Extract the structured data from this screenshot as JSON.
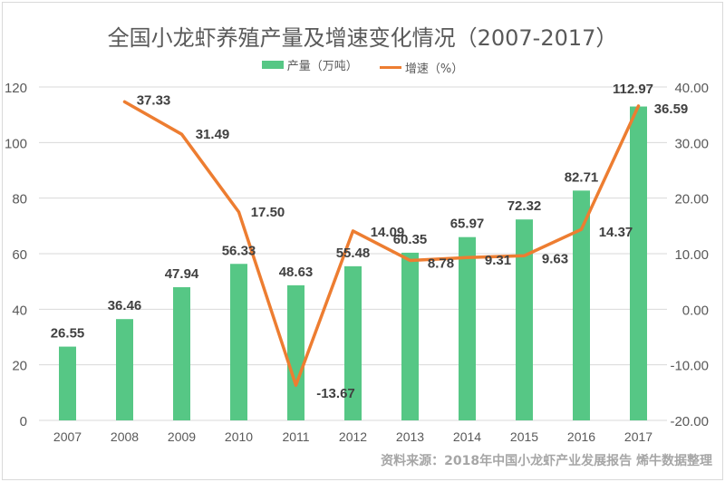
{
  "chart_data": {
    "type": "bar",
    "title": "全国小龙虾养殖产量及增速变化情况（2007-2017）",
    "categories": [
      "2007",
      "2008",
      "2009",
      "2010",
      "2011",
      "2012",
      "2013",
      "2014",
      "2015",
      "2016",
      "2017"
    ],
    "series": [
      {
        "name": "产量（万吨）",
        "type": "bar",
        "axis": "left",
        "color": "#56c785",
        "values": [
          26.55,
          36.46,
          47.94,
          56.33,
          48.63,
          55.48,
          60.35,
          65.97,
          72.32,
          82.71,
          112.97
        ],
        "labels": [
          "26.55",
          "36.46",
          "47.94",
          "56.33",
          "48.63",
          "55.48",
          "60.35",
          "65.97",
          "72.32",
          "82.71",
          "112.97"
        ]
      },
      {
        "name": "增速（%）",
        "type": "line",
        "axis": "right",
        "color": "#ed7d31",
        "values": [
          null,
          37.33,
          31.49,
          17.5,
          -13.67,
          14.09,
          8.78,
          9.31,
          9.63,
          14.37,
          36.59
        ],
        "labels": [
          "",
          "37.33",
          "31.49",
          "17.50",
          "-13.67",
          "14.09",
          "8.78",
          "9.31",
          "9.63",
          "14.37",
          "36.59"
        ]
      }
    ],
    "left_axis": {
      "ylim": [
        0,
        120
      ],
      "ticks": [
        "0",
        "20",
        "40",
        "60",
        "80",
        "100",
        "120"
      ]
    },
    "right_axis": {
      "ylim": [
        -20,
        40
      ],
      "ticks": [
        "-20.00",
        "-10.00",
        "0.00",
        "10.00",
        "20.00",
        "30.00",
        "40.00"
      ]
    },
    "grid": true,
    "legend_position": "top"
  },
  "source_note": "资料来源：2018年中国小龙虾产业发展报告 烯牛数据整理"
}
